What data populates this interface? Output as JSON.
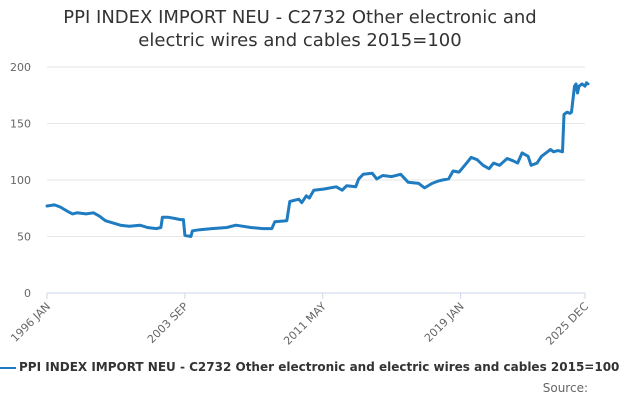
{
  "chart_data": {
    "type": "line",
    "title": "PPI INDEX IMPORT NEU - C2732 Other electronic and electric wires and cables 2015=100",
    "title_lines": [
      "PPI INDEX IMPORT NEU - C2732 Other electronic and",
      "electric wires and cables 2015=100"
    ],
    "xlabel": "",
    "ylabel": "",
    "ylim": [
      0,
      200
    ],
    "y_ticks": [
      "0",
      "50",
      "100",
      "150",
      "200"
    ],
    "x_ticks": [
      "1996 JAN",
      "2003 SEP",
      "2011 MAY",
      "2019 JAN",
      "2025 DEC"
    ],
    "grid": "horizontal",
    "legend_position": "bottom",
    "line_color": "#1f7cc1",
    "series": [
      {
        "name": "PPI INDEX IMPORT NEU - C2732 Other electronic and electric wires and cables 2015=100",
        "points": [
          [
            "1996-01",
            77
          ],
          [
            "1996-06",
            78
          ],
          [
            "1996-10",
            76
          ],
          [
            "1997-03",
            72
          ],
          [
            "1997-06",
            70
          ],
          [
            "1997-09",
            71
          ],
          [
            "1998-03",
            70
          ],
          [
            "1998-08",
            71
          ],
          [
            "1998-12",
            68
          ],
          [
            "1999-04",
            64
          ],
          [
            "1999-09",
            62
          ],
          [
            "2000-02",
            60
          ],
          [
            "2000-08",
            59
          ],
          [
            "2001-03",
            60
          ],
          [
            "2001-08",
            58
          ],
          [
            "2002-02",
            57
          ],
          [
            "2002-05",
            58
          ],
          [
            "2002-06",
            67
          ],
          [
            "2002-10",
            67
          ],
          [
            "2003-02",
            66
          ],
          [
            "2003-06",
            65
          ],
          [
            "2003-08",
            65
          ],
          [
            "2003-09",
            51
          ],
          [
            "2004-01",
            50
          ],
          [
            "2004-02",
            55
          ],
          [
            "2004-07",
            56
          ],
          [
            "2005-03",
            57
          ],
          [
            "2006-01",
            58
          ],
          [
            "2006-07",
            60
          ],
          [
            "2006-12",
            59
          ],
          [
            "2007-05",
            58
          ],
          [
            "2008-01",
            57
          ],
          [
            "2008-07",
            57
          ],
          [
            "2008-09",
            63
          ],
          [
            "2009-05",
            64
          ],
          [
            "2009-07",
            81
          ],
          [
            "2010-01",
            83
          ],
          [
            "2010-03",
            80
          ],
          [
            "2010-06",
            86
          ],
          [
            "2010-08",
            84
          ],
          [
            "2010-11",
            91
          ],
          [
            "2011-06",
            92
          ],
          [
            "2012-02",
            94
          ],
          [
            "2012-06",
            91
          ],
          [
            "2012-09",
            95
          ],
          [
            "2013-03",
            94
          ],
          [
            "2013-05",
            101
          ],
          [
            "2013-08",
            105
          ],
          [
            "2014-02",
            106
          ],
          [
            "2014-05",
            101
          ],
          [
            "2014-09",
            104
          ],
          [
            "2015-03",
            103
          ],
          [
            "2015-09",
            105
          ],
          [
            "2016-02",
            98
          ],
          [
            "2016-09",
            97
          ],
          [
            "2017-01",
            93
          ],
          [
            "2017-06",
            97
          ],
          [
            "2017-10",
            99
          ],
          [
            "2018-01",
            100
          ],
          [
            "2018-05",
            101
          ],
          [
            "2018-08",
            108
          ],
          [
            "2018-12",
            107
          ],
          [
            "2019-05",
            115
          ],
          [
            "2019-08",
            120
          ],
          [
            "2019-12",
            118
          ],
          [
            "2020-04",
            113
          ],
          [
            "2020-08",
            110
          ],
          [
            "2020-11",
            115
          ],
          [
            "2021-03",
            113
          ],
          [
            "2021-08",
            119
          ],
          [
            "2021-12",
            117
          ],
          [
            "2022-03",
            115
          ],
          [
            "2022-06",
            124
          ],
          [
            "2022-10",
            121
          ],
          [
            "2022-12",
            113
          ],
          [
            "2023-04",
            115
          ],
          [
            "2023-07",
            121
          ],
          [
            "2023-10",
            124
          ],
          [
            "2024-01",
            127
          ],
          [
            "2024-03",
            125
          ],
          [
            "2024-06",
            126
          ],
          [
            "2024-09",
            125
          ],
          [
            "2024-10",
            158
          ],
          [
            "2024-12",
            160
          ],
          [
            "2025-02",
            159
          ],
          [
            "2025-03",
            160
          ],
          [
            "2025-05",
            183
          ],
          [
            "2025-06",
            185
          ],
          [
            "2025-07",
            177
          ],
          [
            "2025-08",
            183
          ],
          [
            "2025-10",
            185
          ],
          [
            "2025-12",
            183
          ],
          [
            "2026-01",
            186
          ],
          [
            "2026-02",
            185
          ]
        ]
      }
    ]
  },
  "legend": {
    "label": "PPI INDEX IMPORT NEU - C2732 Other electronic and electric wires and cables 2015=100"
  },
  "source_label": "Source:"
}
